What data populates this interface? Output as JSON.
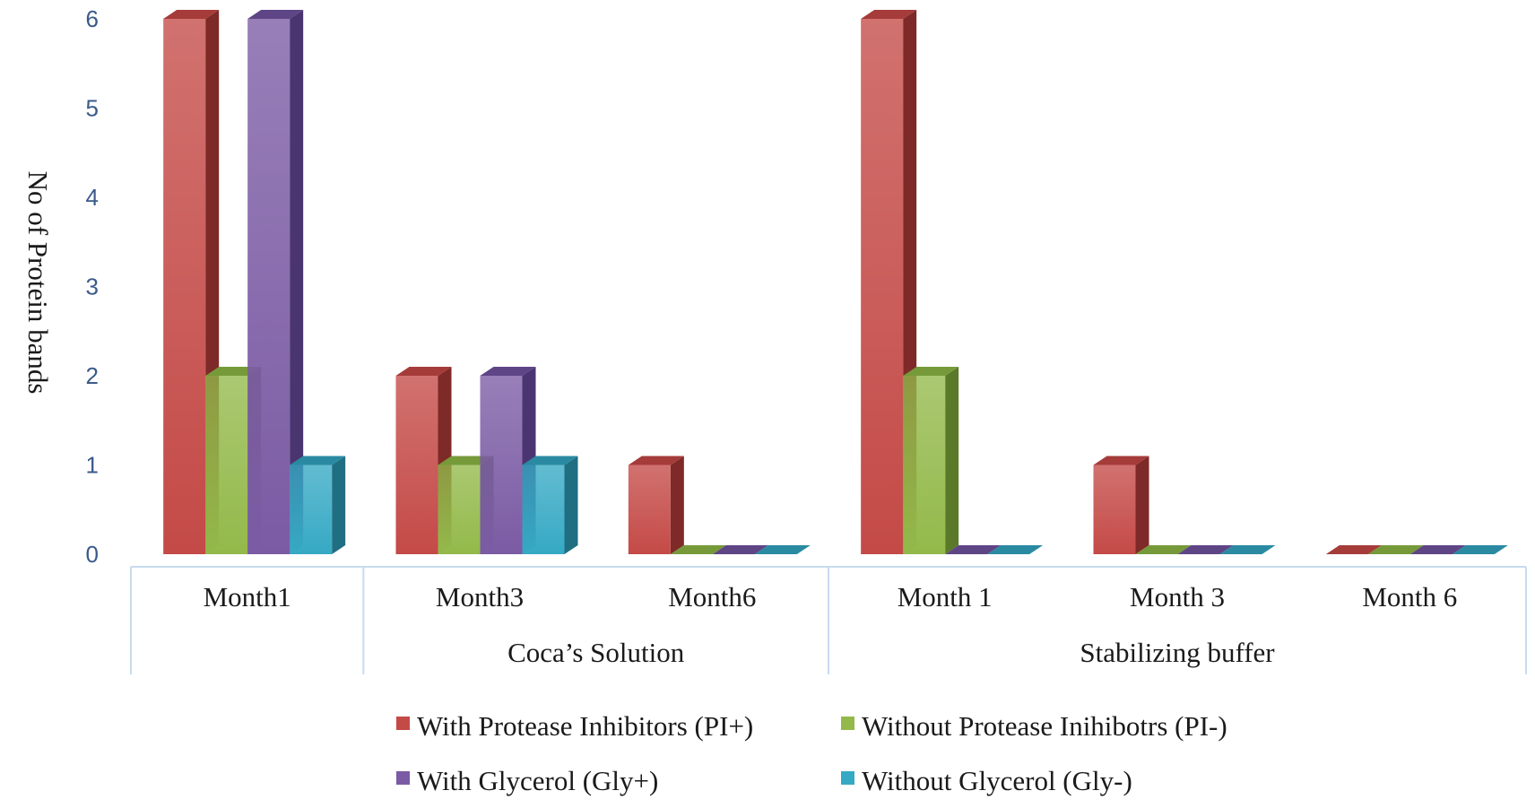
{
  "chart_data": {
    "type": "bar",
    "style": "3d-clustered-column",
    "ylabel": "No of Protein bands",
    "ylim": [
      0,
      6
    ],
    "yticks": [
      0,
      1,
      2,
      3,
      4,
      5,
      6
    ],
    "groups": [
      {
        "label": "",
        "categories": [
          "Month1"
        ]
      },
      {
        "label": "Coca’s Solution",
        "categories": [
          "Month3",
          "Month6"
        ]
      },
      {
        "label": "Stabilizing buffer",
        "categories": [
          "Month 1",
          "Month 3",
          "Month 6"
        ]
      }
    ],
    "categories": [
      "Month1",
      "Month3",
      "Month6",
      "Month 1",
      "Month 3",
      "Month 6"
    ],
    "series": [
      {
        "name": "With Protease Inhibitors (PI+)",
        "values": [
          6,
          2,
          1,
          6,
          1,
          0
        ]
      },
      {
        "name": "Without Protease Inihibotrs (PI-)",
        "values": [
          2,
          1,
          0,
          2,
          0,
          0
        ]
      },
      {
        "name": "With Glycerol (Gly+)",
        "values": [
          6,
          2,
          0,
          0,
          0,
          0
        ]
      },
      {
        "name": "Without Glycerol (Gly-)",
        "values": [
          1,
          1,
          0,
          0,
          0,
          0
        ]
      }
    ],
    "legend": "bottom",
    "grid": false,
    "colors": {
      "series_front": [
        "#c44a47",
        "#93b94a",
        "#7b5ba4",
        "#36a9c4"
      ],
      "series_top": [
        "#a53c3a",
        "#769a39",
        "#5e4585",
        "#2a8aa2"
      ],
      "series_side": [
        "#7e2a28",
        "#5a7a2a",
        "#4a3570",
        "#1f6e82"
      ],
      "axis": "#c7dbee"
    }
  }
}
